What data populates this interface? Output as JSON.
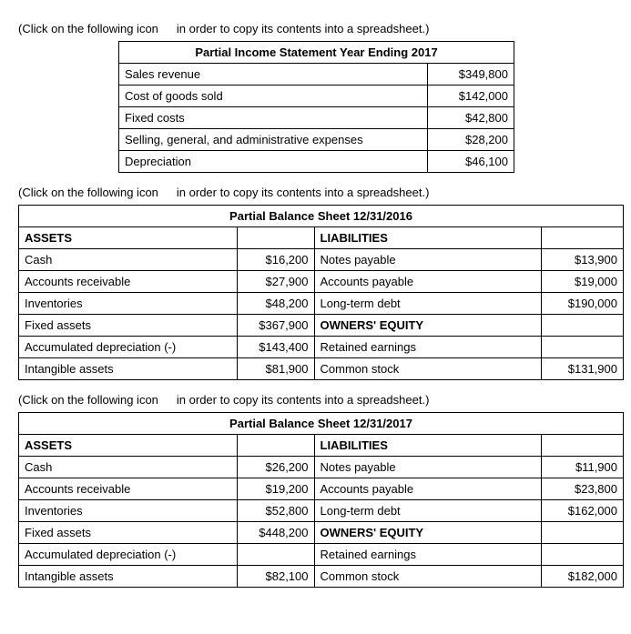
{
  "hint_prefix": "(Click on the following icon",
  "hint_suffix": "in order to copy its contents into a spreadsheet.)",
  "income": {
    "title": "Partial Income Statement Year Ending 2017",
    "rows": [
      {
        "label": "Sales revenue",
        "value": "$349,800"
      },
      {
        "label": "Cost of goods sold",
        "value": "$142,000"
      },
      {
        "label": "Fixed costs",
        "value": "$42,800"
      },
      {
        "label": "Selling, general, and administrative expenses",
        "value": "$28,200"
      },
      {
        "label": "Depreciation",
        "value": "$46,100"
      }
    ]
  },
  "bs2016": {
    "title": "Partial Balance Sheet 12/31/2016",
    "left_header": "ASSETS",
    "right_header": "LIABILITIES",
    "equity_header": "OWNERS' EQUITY",
    "rows": [
      {
        "l": "Cash",
        "lv": "$16,200",
        "r": "Notes payable",
        "rv": "$13,900"
      },
      {
        "l": "Accounts receivable",
        "lv": "$27,900",
        "r": "Accounts payable",
        "rv": "$19,000"
      },
      {
        "l": "Inventories",
        "lv": "$48,200",
        "r": "Long-term debt",
        "rv": "$190,000"
      },
      {
        "l": "Fixed assets",
        "lv": "$367,900",
        "r": "__EQUITY__",
        "rv": ""
      },
      {
        "l": "Accumulated depreciation (-)",
        "lv": "$143,400",
        "r": "Retained earnings",
        "rv": ""
      },
      {
        "l": "Intangible assets",
        "lv": "$81,900",
        "r": "Common stock",
        "rv": "$131,900"
      }
    ]
  },
  "bs2017": {
    "title": "Partial Balance Sheet 12/31/2017",
    "left_header": "ASSETS",
    "right_header": "LIABILITIES",
    "equity_header": "OWNERS' EQUITY",
    "rows": [
      {
        "l": "Cash",
        "lv": "$26,200",
        "r": "Notes payable",
        "rv": "$11,900"
      },
      {
        "l": "Accounts receivable",
        "lv": "$19,200",
        "r": "Accounts payable",
        "rv": "$23,800"
      },
      {
        "l": "Inventories",
        "lv": "$52,800",
        "r": "Long-term debt",
        "rv": "$162,000"
      },
      {
        "l": "Fixed assets",
        "lv": "$448,200",
        "r": "__EQUITY__",
        "rv": ""
      },
      {
        "l": "Accumulated depreciation (-)",
        "lv": "",
        "r": "Retained earnings",
        "rv": ""
      },
      {
        "l": "Intangible assets",
        "lv": "$82,100",
        "r": "Common stock",
        "rv": "$182,000"
      }
    ]
  }
}
